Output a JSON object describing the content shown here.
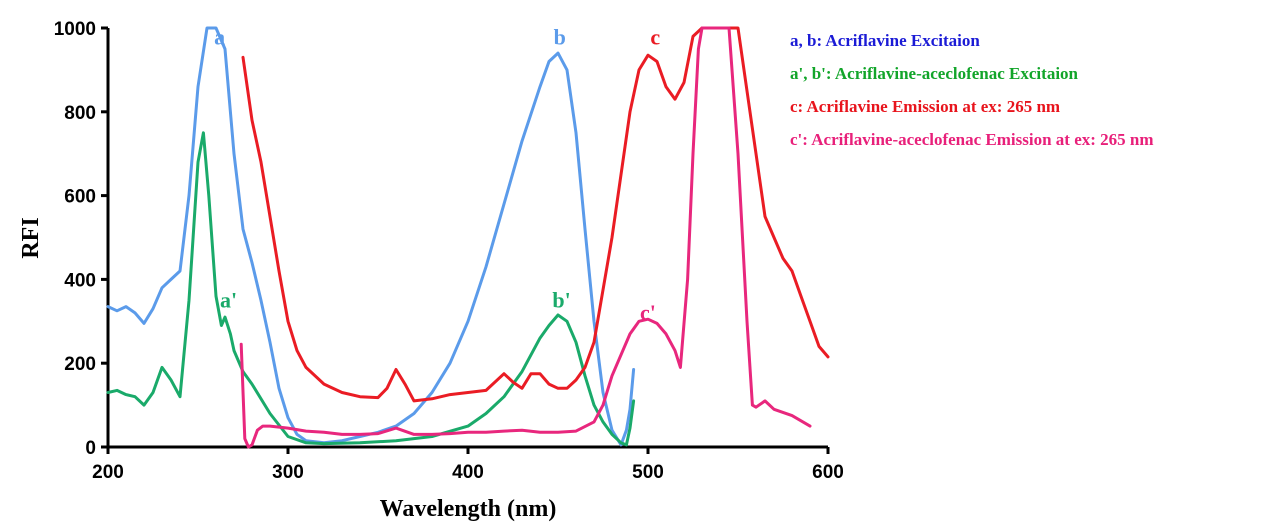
{
  "chart_data": {
    "type": "line",
    "xlabel": "Wavelength (nm)",
    "ylabel": "RFI",
    "xlim": [
      200,
      600
    ],
    "ylim": [
      0,
      1000
    ],
    "x_ticks": [
      200,
      300,
      400,
      500,
      600
    ],
    "y_ticks": [
      0,
      200,
      400,
      600,
      800,
      1000
    ],
    "colors": {
      "blue": "#5b9bea",
      "green": "#1aaa6a",
      "red": "#ea1c24",
      "pink": "#e8277d",
      "legend_blue": "#1b1bd6",
      "legend_green": "#12a52a",
      "legend_red": "#e8141c",
      "legend_pink": "#e8207a"
    },
    "legend": [
      {
        "text": "a, b: Acriflavine Excitaion",
        "color": "#1b1bd6"
      },
      {
        "text": "a', b': Acriflavine-aceclofenac Excitaion",
        "color": "#12a52a"
      },
      {
        "text": "c: Acriflavine Emission at ex: 265 nm",
        "color": "#e8141c"
      },
      {
        "text": "c': Acriflavine-aceclofenac Emission at ex: 265 nm",
        "color": "#e8207a"
      }
    ],
    "annotations": [
      {
        "text": "a",
        "x": 262,
        "y": 980,
        "color": "#5b9bea"
      },
      {
        "text": "b",
        "x": 451,
        "y": 980,
        "color": "#5b9bea"
      },
      {
        "text": "c",
        "x": 504,
        "y": 980,
        "color": "#ea1c24"
      },
      {
        "text": "a'",
        "x": 267,
        "y": 352,
        "color": "#1aaa6a"
      },
      {
        "text": "b'",
        "x": 452,
        "y": 352,
        "color": "#1aaa6a"
      },
      {
        "text": "c'",
        "x": 500,
        "y": 322,
        "color": "#e8277d"
      }
    ],
    "series": [
      {
        "label": "a, b",
        "color": "#5b9bea",
        "x": [
          200,
          205,
          210,
          215,
          220,
          225,
          230,
          235,
          240,
          245,
          250,
          255,
          260,
          265,
          270,
          275,
          280,
          285,
          290,
          295,
          300,
          305,
          310,
          320,
          330,
          340,
          350,
          360,
          370,
          380,
          390,
          400,
          410,
          420,
          430,
          440,
          445,
          450,
          455,
          460,
          465,
          470,
          475,
          480,
          485,
          488,
          490,
          492
        ],
        "y": [
          335,
          325,
          335,
          320,
          295,
          330,
          380,
          400,
          420,
          600,
          860,
          1000,
          1000,
          950,
          700,
          520,
          440,
          350,
          250,
          140,
          70,
          30,
          15,
          10,
          15,
          25,
          35,
          50,
          80,
          130,
          200,
          300,
          430,
          580,
          730,
          860,
          920,
          940,
          900,
          750,
          520,
          300,
          130,
          40,
          5,
          40,
          90,
          185
        ]
      },
      {
        "label": "a', b'",
        "color": "#1aaa6a",
        "x": [
          200,
          205,
          210,
          215,
          220,
          225,
          230,
          235,
          240,
          245,
          250,
          253,
          256,
          260,
          263,
          265,
          268,
          270,
          275,
          280,
          290,
          300,
          310,
          320,
          340,
          360,
          380,
          400,
          410,
          420,
          430,
          440,
          445,
          450,
          455,
          460,
          465,
          470,
          475,
          480,
          485,
          488,
          490,
          492
        ],
        "y": [
          130,
          135,
          125,
          120,
          100,
          130,
          190,
          160,
          120,
          350,
          680,
          750,
          600,
          360,
          290,
          310,
          270,
          230,
          180,
          150,
          80,
          25,
          10,
          8,
          10,
          15,
          25,
          50,
          80,
          120,
          180,
          260,
          290,
          315,
          300,
          250,
          170,
          100,
          60,
          30,
          10,
          5,
          45,
          110
        ]
      },
      {
        "label": "c",
        "color": "#ea1c24",
        "x": [
          275,
          280,
          285,
          290,
          295,
          300,
          305,
          310,
          320,
          330,
          340,
          350,
          355,
          360,
          365,
          370,
          380,
          390,
          400,
          410,
          420,
          425,
          430,
          435,
          440,
          445,
          450,
          455,
          460,
          465,
          470,
          480,
          490,
          495,
          500,
          505,
          510,
          515,
          520,
          525,
          530,
          540,
          550,
          555,
          560,
          565,
          570,
          575,
          580,
          585,
          590,
          595,
          600
        ],
        "y": [
          930,
          780,
          680,
          550,
          420,
          300,
          230,
          190,
          150,
          130,
          120,
          118,
          140,
          185,
          150,
          110,
          115,
          125,
          130,
          135,
          175,
          155,
          140,
          175,
          175,
          150,
          140,
          140,
          160,
          190,
          250,
          500,
          800,
          900,
          935,
          920,
          860,
          830,
          870,
          980,
          1000,
          1000,
          1000,
          850,
          700,
          550,
          500,
          450,
          420,
          360,
          300,
          240,
          215
        ]
      },
      {
        "label": "c'",
        "color": "#e8277d",
        "x": [
          274,
          276,
          278,
          280,
          283,
          286,
          290,
          300,
          310,
          320,
          330,
          340,
          350,
          360,
          370,
          380,
          390,
          400,
          410,
          420,
          430,
          440,
          450,
          460,
          470,
          475,
          480,
          490,
          495,
          500,
          505,
          510,
          515,
          518,
          522,
          525,
          528,
          530,
          535,
          540,
          545,
          550,
          555,
          558,
          560,
          565,
          570,
          580,
          590
        ],
        "y": [
          245,
          20,
          0,
          5,
          40,
          50,
          50,
          45,
          38,
          35,
          30,
          30,
          32,
          45,
          30,
          30,
          32,
          35,
          35,
          38,
          40,
          35,
          35,
          38,
          60,
          100,
          170,
          270,
          300,
          305,
          295,
          270,
          230,
          190,
          400,
          700,
          950,
          1000,
          1000,
          1000,
          1000,
          700,
          300,
          100,
          95,
          110,
          90,
          75,
          50
        ]
      }
    ]
  }
}
